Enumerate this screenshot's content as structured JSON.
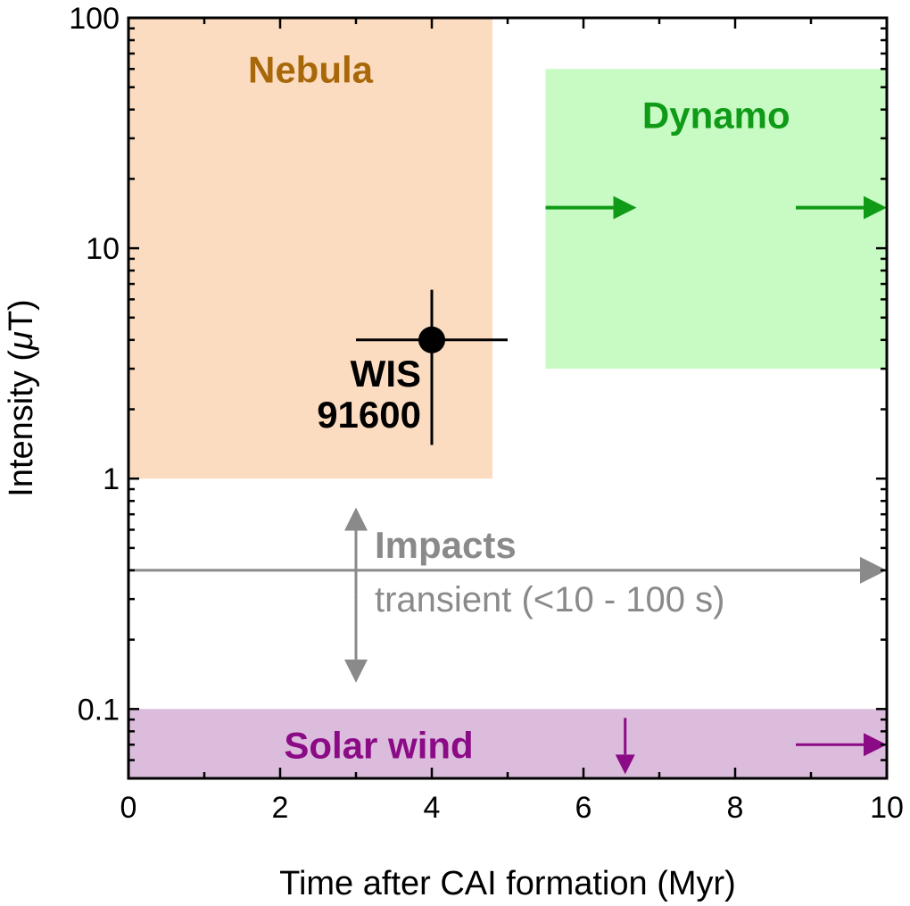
{
  "chart_data": {
    "type": "scatter",
    "xlabel": "Time after CAI formation (Myr)",
    "ylabel_main": "Intensity (",
    "ylabel_mu": "μ",
    "ylabel_end": "T)",
    "xlim": [
      0,
      10
    ],
    "ylim": [
      0.05,
      100
    ],
    "yscale": "log",
    "x_ticks": [
      0,
      2,
      4,
      6,
      8,
      10
    ],
    "x_tick_labels": [
      "0",
      "2",
      "4",
      "6",
      "8",
      "10"
    ],
    "y_ticks": [
      0.1,
      1,
      10,
      100
    ],
    "y_tick_labels": [
      "0.1",
      "1",
      "10",
      "100"
    ],
    "regions": [
      {
        "name": "Nebula",
        "x": [
          0,
          4.8
        ],
        "y": [
          1,
          100
        ],
        "fill": "#fcdcc0",
        "text_color": "#a8680a",
        "label_at": {
          "x": 2.4,
          "y": 60
        }
      },
      {
        "name": "Dynamo",
        "x": [
          5.5,
          10
        ],
        "y": [
          3,
          60
        ],
        "fill": "#c8fbc3",
        "text_color": "#0f9b18",
        "label_at": {
          "x": 7.75,
          "y": 38
        }
      },
      {
        "name": "Solar wind",
        "x": [
          0,
          10
        ],
        "y": [
          0.05,
          0.1
        ],
        "fill": "#dcbcdc",
        "text_color": "#8b0a85",
        "label_at": {
          "x": 3.3,
          "y": 0.07
        }
      }
    ],
    "point": {
      "label_line1": "WIS",
      "label_line2": "91600",
      "x": 4,
      "y": 4,
      "x_err": [
        3.0,
        5.0
      ],
      "y_err": [
        1.4,
        6.6
      ]
    },
    "impacts": {
      "label": "Impacts",
      "sublabel": "transient (<10 - 100 s)",
      "color": "#8a8a8a",
      "horizontal_arrow": {
        "x_from": 0,
        "x_to": 10,
        "y": 0.4
      },
      "vertical_arrow": {
        "x": 3,
        "y_from": 0.13,
        "y_to": 0.75
      }
    },
    "dynamo_arrows": [
      {
        "x_from": 5.5,
        "x_to": 6.7,
        "y": 15,
        "color": "#0f9b18"
      },
      {
        "x_from": 8.8,
        "x_to": 10,
        "y": 15,
        "color": "#0f9b18"
      }
    ],
    "solar_wind_arrows": [
      {
        "direction": "right",
        "x_from": 8.8,
        "x_to": 10,
        "y": 0.07,
        "color": "#8b0a85"
      },
      {
        "direction": "down",
        "x": 6.55,
        "y_from": 0.1,
        "y_to": 0.055,
        "color": "#8b0a85"
      }
    ]
  }
}
